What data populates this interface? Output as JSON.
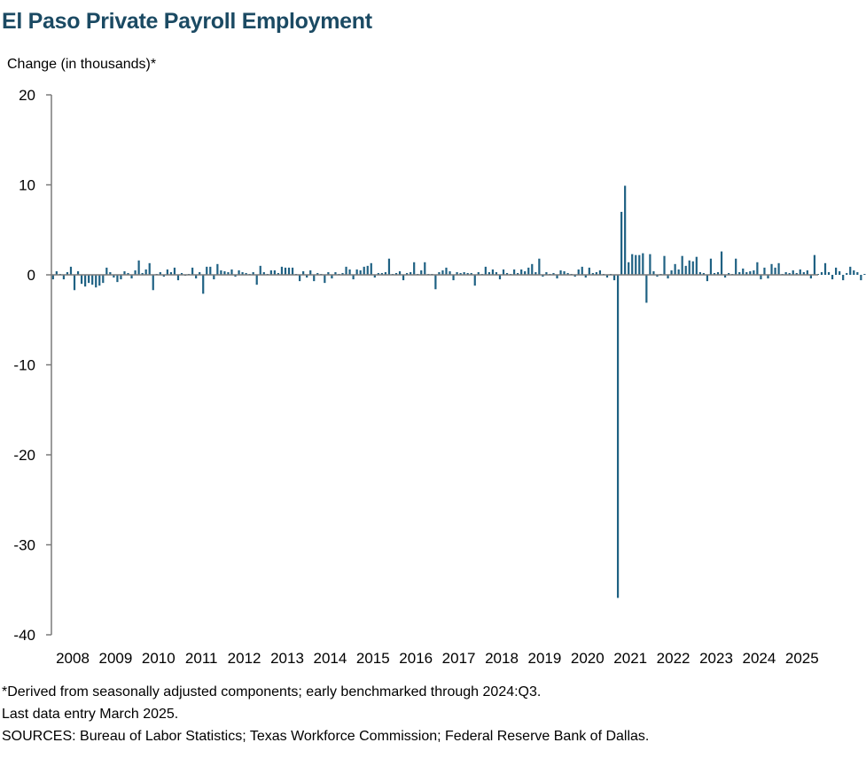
{
  "chart_data": {
    "type": "bar",
    "title": "El Paso Private Payroll Employment",
    "ylabel": "Change (in thousands)*",
    "ylim": [
      -40,
      20
    ],
    "yticks": [
      20,
      10,
      0,
      -10,
      -20,
      -30,
      -40
    ],
    "xticks": [
      "2008",
      "2009",
      "2010",
      "2011",
      "2012",
      "2013",
      "2014",
      "2015",
      "2016",
      "2017",
      "2018",
      "2019",
      "2020",
      "2021",
      "2022",
      "2023",
      "2024",
      "2025"
    ],
    "frequency": "monthly",
    "start": "2008-01",
    "end": "2025-03",
    "bar_color": "#1f6183",
    "values": [
      -0.5,
      0.4,
      0.1,
      -0.5,
      0.3,
      0.9,
      -1.7,
      0.4,
      -1.0,
      -1.3,
      -0.9,
      -1.1,
      -1.4,
      -1.2,
      -0.9,
      0.8,
      0.3,
      -0.3,
      -0.8,
      -0.5,
      0.4,
      0.2,
      -0.4,
      0.5,
      1.6,
      0.2,
      0.6,
      1.3,
      -1.7,
      0.1,
      0.3,
      -0.2,
      0.6,
      0.3,
      0.8,
      -0.6,
      0.2,
      -0.1,
      0.1,
      0.8,
      -0.4,
      0.3,
      -2.1,
      0.9,
      0.9,
      -0.5,
      1.2,
      0.5,
      0.4,
      0.3,
      0.6,
      -0.2,
      0.5,
      0.3,
      0.2,
      0.1,
      0.3,
      -1.1,
      1.0,
      0.3,
      0.1,
      0.5,
      0.5,
      0.2,
      0.9,
      0.8,
      0.8,
      0.8,
      0.1,
      -0.7,
      0.4,
      -0.3,
      0.5,
      -0.7,
      0.2,
      0.1,
      -0.9,
      0.3,
      -0.4,
      0.3,
      0.1,
      0.2,
      0.9,
      0.6,
      -0.5,
      0.6,
      0.5,
      0.9,
      1.0,
      1.3,
      -0.3,
      0.2,
      0.2,
      0.3,
      1.8,
      0.1,
      0.2,
      0.4,
      -0.6,
      0.2,
      0.3,
      1.4,
      0.1,
      0.5,
      1.4,
      0.1,
      0.1,
      -1.6,
      0.3,
      0.5,
      0.8,
      0.4,
      -0.6,
      0.3,
      0.2,
      0.3,
      0.2,
      0.2,
      -1.2,
      0.3,
      0.1,
      0.9,
      0.3,
      0.6,
      0.3,
      -0.5,
      0.6,
      0.2,
      0.1,
      0.6,
      0.2,
      0.6,
      0.4,
      0.8,
      1.2,
      0.3,
      1.8,
      -0.2,
      0.3,
      0.1,
      0.2,
      -0.4,
      0.5,
      0.4,
      0.2,
      0.1,
      -0.2,
      0.6,
      0.9,
      -0.3,
      0.8,
      0.2,
      0.3,
      0.5,
      0.1,
      -0.3,
      0.1,
      -0.6,
      -35.9,
      7.0,
      9.9,
      1.4,
      2.3,
      2.2,
      2.2,
      2.4,
      -3.1,
      2.3,
      0.4,
      -0.2,
      0.1,
      2.1,
      -0.4,
      0.5,
      1.2,
      0.6,
      2.1,
      1.0,
      1.6,
      1.5,
      2.0,
      0.3,
      0.2,
      -0.7,
      1.8,
      0.2,
      0.3,
      2.6,
      -0.3,
      0.2,
      0.1,
      1.8,
      0.3,
      0.7,
      0.3,
      0.4,
      0.5,
      1.4,
      -0.5,
      0.8,
      -0.4,
      1.2,
      0.8,
      1.3,
      0.1,
      0.3,
      0.2,
      0.5,
      0.2,
      0.6,
      0.3,
      0.5,
      -0.4,
      2.2,
      0.1,
      0.3,
      1.3,
      0.3,
      -0.5,
      0.8,
      0.4,
      -0.6,
      0.2,
      0.9,
      0.5,
      0.3,
      -0.6,
      0.1,
      0.2,
      0.3,
      0.6,
      -0.5,
      0.2,
      0.1,
      0.4
    ]
  },
  "notes": [
    "*Derived from seasonally adjusted components; early benchmarked through 2024:Q3.",
    "Last data entry March 2025.",
    "SOURCES:  Bureau of Labor Statistics; Texas Workforce Commission;  Federal Reserve Bank of Dallas."
  ]
}
